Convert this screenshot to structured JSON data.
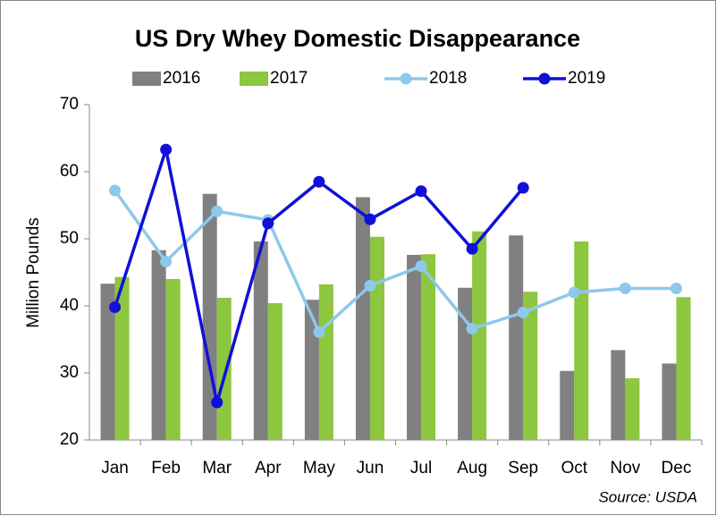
{
  "chart_data": {
    "type": "combo",
    "title": "US Dry Whey Domestic Disappearance",
    "y_label": "Million Pounds",
    "source": "Source: USDA",
    "categories": [
      "Jan",
      "Feb",
      "Mar",
      "Apr",
      "May",
      "Jun",
      "Jul",
      "Aug",
      "Sep",
      "Oct",
      "Nov",
      "Dec"
    ],
    "series": [
      {
        "name": "2016",
        "type": "bar",
        "color": "#808080",
        "values": [
          43.3,
          48.3,
          56.7,
          49.6,
          40.9,
          56.2,
          47.6,
          42.7,
          50.5,
          30.3,
          33.4,
          31.4
        ]
      },
      {
        "name": "2017",
        "type": "bar",
        "color": "#8dc63f",
        "values": [
          44.3,
          44.0,
          41.2,
          40.4,
          43.2,
          50.3,
          47.7,
          51.1,
          42.1,
          49.6,
          29.2,
          41.3
        ]
      },
      {
        "name": "2018",
        "type": "line",
        "color": "#8ec8eb",
        "values": [
          57.2,
          46.6,
          54.1,
          52.8,
          36.1,
          43.0,
          45.9,
          36.6,
          39.0,
          42.0,
          42.6,
          42.6
        ]
      },
      {
        "name": "2019",
        "type": "line",
        "color": "#1010d8",
        "values": [
          39.8,
          63.3,
          25.6,
          52.3,
          58.5,
          52.9,
          57.1,
          48.5,
          57.6,
          null,
          null,
          null
        ]
      }
    ],
    "ylim": [
      20,
      70
    ],
    "yticks": [
      20,
      30,
      40,
      50,
      60,
      70
    ],
    "grid": false,
    "legend": "top"
  }
}
